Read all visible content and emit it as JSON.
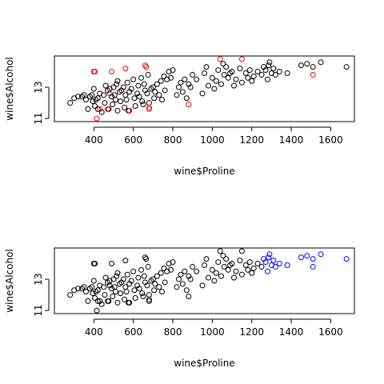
{
  "chart_data": [
    {
      "type": "scatter",
      "xlabel": "wine$Proline",
      "ylabel": "wine$Alcohol",
      "xlim": [
        200,
        1720
      ],
      "ylim": [
        10.8,
        15.0
      ],
      "xticks": [
        400,
        600,
        800,
        1000,
        1200,
        1400,
        1600
      ],
      "yticks": [
        11,
        13
      ],
      "grid": false,
      "colors": {
        "base": "#000000",
        "highlight": "#ff0000"
      },
      "points": [
        [
          280,
          12.0
        ],
        [
          300,
          12.3
        ],
        [
          320,
          12.4
        ],
        [
          340,
          12.4
        ],
        [
          350,
          12.5
        ],
        [
          360,
          12.2
        ],
        [
          370,
          11.6
        ],
        [
          380,
          12.4
        ],
        [
          390,
          12.5
        ],
        [
          395,
          12.1
        ],
        [
          400,
          12.9
        ],
        [
          405,
          11.8
        ],
        [
          410,
          12.2
        ],
        [
          420,
          12.3
        ],
        [
          420,
          11.6
        ],
        [
          430,
          12.6
        ],
        [
          440,
          11.4
        ],
        [
          450,
          12.5
        ],
        [
          455,
          12.0
        ],
        [
          460,
          13.1
        ],
        [
          470,
          12.8
        ],
        [
          475,
          11.6
        ],
        [
          480,
          12.9
        ],
        [
          490,
          12.4
        ],
        [
          495,
          11.9
        ],
        [
          500,
          13.0
        ],
        [
          505,
          12.5
        ],
        [
          510,
          12.2
        ],
        [
          515,
          13.2
        ],
        [
          520,
          13.4
        ],
        [
          520,
          11.5
        ],
        [
          530,
          12.7
        ],
        [
          535,
          12.1
        ],
        [
          540,
          12.8
        ],
        [
          550,
          13.0
        ],
        [
          555,
          11.7
        ],
        [
          560,
          12.5
        ],
        [
          565,
          12.2
        ],
        [
          570,
          13.3
        ],
        [
          575,
          11.5
        ],
        [
          580,
          12.7
        ],
        [
          590,
          12.9
        ],
        [
          600,
          13.5
        ],
        [
          605,
          12.3
        ],
        [
          610,
          11.8
        ],
        [
          620,
          12.6
        ],
        [
          625,
          13.1
        ],
        [
          630,
          12.4
        ],
        [
          640,
          13.6
        ],
        [
          645,
          12.1
        ],
        [
          650,
          11.9
        ],
        [
          655,
          13.2
        ],
        [
          660,
          12.8
        ],
        [
          670,
          12.6
        ],
        [
          675,
          13.8
        ],
        [
          680,
          12.0
        ],
        [
          690,
          12.9
        ],
        [
          700,
          13.0
        ],
        [
          705,
          12.3
        ],
        [
          710,
          12.7
        ],
        [
          720,
          13.2
        ],
        [
          730,
          12.5
        ],
        [
          740,
          13.4
        ],
        [
          745,
          12.2
        ],
        [
          755,
          13.7
        ],
        [
          760,
          12.8
        ],
        [
          770,
          13.5
        ],
        [
          780,
          14.0
        ],
        [
          790,
          13.6
        ],
        [
          800,
          14.1
        ],
        [
          820,
          12.5
        ],
        [
          830,
          13.0
        ],
        [
          840,
          13.3
        ],
        [
          850,
          12.7
        ],
        [
          860,
          13.5
        ],
        [
          870,
          12.3
        ],
        [
          880,
          13.2
        ],
        [
          890,
          13.0
        ],
        [
          900,
          13.8
        ],
        [
          920,
          13.5
        ],
        [
          950,
          12.6
        ],
        [
          960,
          13.9
        ],
        [
          970,
          14.3
        ],
        [
          980,
          13.1
        ],
        [
          1000,
          13.6
        ],
        [
          1010,
          12.9
        ],
        [
          1020,
          13.4
        ],
        [
          1030,
          14.1
        ],
        [
          1045,
          13.2
        ],
        [
          1055,
          14.5
        ],
        [
          1060,
          13.8
        ],
        [
          1070,
          14.3
        ],
        [
          1080,
          13.6
        ],
        [
          1090,
          13.9
        ],
        [
          1100,
          14.0
        ],
        [
          1110,
          13.1
        ],
        [
          1120,
          13.5
        ],
        [
          1140,
          14.2
        ],
        [
          1150,
          13.3
        ],
        [
          1170,
          13.9
        ],
        [
          1180,
          13.6
        ],
        [
          1190,
          14.1
        ],
        [
          1200,
          13.4
        ],
        [
          1210,
          13.7
        ],
        [
          1230,
          14.0
        ],
        [
          1250,
          13.8
        ],
        [
          1260,
          14.3
        ],
        [
          1270,
          14.1
        ],
        [
          1280,
          13.5
        ],
        [
          1285,
          14.4
        ],
        [
          1290,
          14.6
        ],
        [
          1300,
          13.9
        ],
        [
          1310,
          14.2
        ],
        [
          1320,
          13.8
        ],
        [
          1340,
          14.0
        ],
        [
          1380,
          13.9
        ],
        [
          1450,
          14.4
        ],
        [
          1480,
          14.5
        ],
        [
          1510,
          14.3
        ],
        [
          1550,
          14.6
        ],
        [
          1680,
          14.3
        ]
      ],
      "highlight_points": [
        [
          400,
          14.0
        ],
        [
          405,
          14.0
        ],
        [
          415,
          11.0
        ],
        [
          430,
          11.6
        ],
        [
          470,
          11.6
        ],
        [
          480,
          12.6
        ],
        [
          490,
          14.0
        ],
        [
          560,
          14.2
        ],
        [
          580,
          11.5
        ],
        [
          660,
          14.4
        ],
        [
          665,
          14.3
        ],
        [
          680,
          11.6
        ],
        [
          680,
          11.7
        ],
        [
          880,
          11.9
        ],
        [
          1040,
          14.8
        ],
        [
          1150,
          14.8
        ],
        [
          1510,
          13.8
        ]
      ]
    },
    {
      "type": "scatter",
      "xlabel": "wine$Proline",
      "ylabel": "wine$Alcohol",
      "xlim": [
        200,
        1720
      ],
      "ylim": [
        10.8,
        15.0
      ],
      "xticks": [
        400,
        600,
        800,
        1000,
        1200,
        1400,
        1600
      ],
      "yticks": [
        11,
        13
      ],
      "grid": false,
      "colors": {
        "base": "#000000",
        "highlight": "#0000ff"
      },
      "points": [
        [
          280,
          12.0
        ],
        [
          300,
          12.3
        ],
        [
          320,
          12.4
        ],
        [
          340,
          12.4
        ],
        [
          350,
          12.5
        ],
        [
          360,
          12.2
        ],
        [
          370,
          11.6
        ],
        [
          380,
          12.4
        ],
        [
          390,
          12.5
        ],
        [
          395,
          12.1
        ],
        [
          400,
          12.9
        ],
        [
          400,
          14.0
        ],
        [
          405,
          14.0
        ],
        [
          405,
          11.8
        ],
        [
          410,
          12.2
        ],
        [
          415,
          11.0
        ],
        [
          420,
          12.3
        ],
        [
          420,
          11.6
        ],
        [
          430,
          12.6
        ],
        [
          430,
          11.6
        ],
        [
          440,
          11.4
        ],
        [
          450,
          12.5
        ],
        [
          455,
          12.0
        ],
        [
          460,
          13.1
        ],
        [
          470,
          12.8
        ],
        [
          470,
          11.6
        ],
        [
          475,
          11.6
        ],
        [
          480,
          12.9
        ],
        [
          480,
          12.6
        ],
        [
          490,
          12.4
        ],
        [
          490,
          14.0
        ],
        [
          495,
          11.9
        ],
        [
          500,
          13.0
        ],
        [
          505,
          12.5
        ],
        [
          510,
          12.2
        ],
        [
          515,
          13.2
        ],
        [
          520,
          13.4
        ],
        [
          520,
          11.5
        ],
        [
          530,
          12.7
        ],
        [
          535,
          12.1
        ],
        [
          540,
          12.8
        ],
        [
          550,
          13.0
        ],
        [
          555,
          11.7
        ],
        [
          560,
          12.5
        ],
        [
          560,
          14.2
        ],
        [
          565,
          12.2
        ],
        [
          570,
          13.3
        ],
        [
          575,
          11.5
        ],
        [
          580,
          12.7
        ],
        [
          580,
          11.5
        ],
        [
          590,
          12.9
        ],
        [
          600,
          13.5
        ],
        [
          605,
          12.3
        ],
        [
          610,
          11.8
        ],
        [
          620,
          12.6
        ],
        [
          625,
          13.1
        ],
        [
          630,
          12.4
        ],
        [
          640,
          13.6
        ],
        [
          645,
          12.1
        ],
        [
          650,
          11.9
        ],
        [
          655,
          13.2
        ],
        [
          660,
          12.8
        ],
        [
          660,
          14.4
        ],
        [
          665,
          14.3
        ],
        [
          670,
          12.6
        ],
        [
          675,
          13.8
        ],
        [
          680,
          12.0
        ],
        [
          680,
          11.6
        ],
        [
          680,
          11.7
        ],
        [
          690,
          12.9
        ],
        [
          700,
          13.0
        ],
        [
          705,
          12.3
        ],
        [
          710,
          12.7
        ],
        [
          720,
          13.2
        ],
        [
          730,
          12.5
        ],
        [
          740,
          13.4
        ],
        [
          745,
          12.2
        ],
        [
          755,
          13.7
        ],
        [
          760,
          12.8
        ],
        [
          770,
          13.5
        ],
        [
          780,
          14.0
        ],
        [
          790,
          13.6
        ],
        [
          800,
          14.1
        ],
        [
          820,
          12.5
        ],
        [
          830,
          13.0
        ],
        [
          840,
          13.3
        ],
        [
          850,
          12.7
        ],
        [
          860,
          13.5
        ],
        [
          870,
          12.3
        ],
        [
          880,
          13.2
        ],
        [
          880,
          11.9
        ],
        [
          890,
          13.0
        ],
        [
          900,
          13.8
        ],
        [
          920,
          13.5
        ],
        [
          950,
          12.6
        ],
        [
          960,
          13.9
        ],
        [
          970,
          14.3
        ],
        [
          980,
          13.1
        ],
        [
          1000,
          13.6
        ],
        [
          1010,
          12.9
        ],
        [
          1020,
          13.4
        ],
        [
          1030,
          14.1
        ],
        [
          1040,
          14.8
        ],
        [
          1045,
          13.2
        ],
        [
          1055,
          14.5
        ],
        [
          1060,
          13.8
        ],
        [
          1070,
          14.3
        ],
        [
          1080,
          13.6
        ],
        [
          1090,
          13.9
        ],
        [
          1100,
          14.0
        ],
        [
          1110,
          13.1
        ],
        [
          1120,
          13.5
        ],
        [
          1140,
          14.2
        ],
        [
          1150,
          13.3
        ],
        [
          1150,
          14.8
        ],
        [
          1170,
          13.9
        ],
        [
          1180,
          13.6
        ],
        [
          1190,
          14.1
        ],
        [
          1200,
          13.4
        ],
        [
          1210,
          13.7
        ],
        [
          1230,
          14.0
        ],
        [
          1250,
          13.8
        ]
      ],
      "highlight_points": [
        [
          1260,
          14.3
        ],
        [
          1270,
          14.1
        ],
        [
          1280,
          13.5
        ],
        [
          1285,
          14.4
        ],
        [
          1290,
          14.6
        ],
        [
          1300,
          13.9
        ],
        [
          1310,
          14.2
        ],
        [
          1320,
          13.8
        ],
        [
          1340,
          14.0
        ],
        [
          1380,
          13.9
        ],
        [
          1450,
          14.4
        ],
        [
          1480,
          14.5
        ],
        [
          1510,
          14.3
        ],
        [
          1510,
          13.8
        ],
        [
          1550,
          14.6
        ],
        [
          1680,
          14.3
        ]
      ]
    }
  ]
}
